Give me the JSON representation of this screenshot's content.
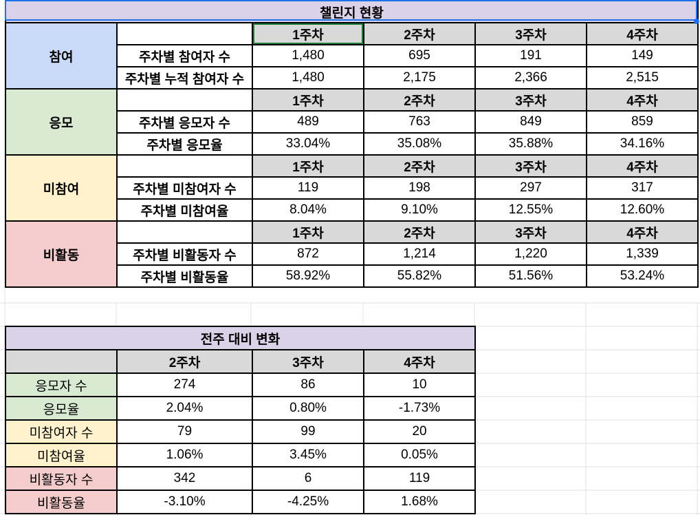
{
  "challenge": {
    "title": "챌린지 현황",
    "week_headers": [
      "1주차",
      "2주차",
      "3주차",
      "4주차"
    ],
    "sections": [
      {
        "category": "참여",
        "color": "#c9daf8",
        "rows": [
          {
            "label": "주차별 참여자 수",
            "values": [
              "1,480",
              "695",
              "191",
              "149"
            ]
          },
          {
            "label": "주차별 누적 참여자 수",
            "values": [
              "1,480",
              "2,175",
              "2,366",
              "2,515"
            ]
          }
        ]
      },
      {
        "category": "응모",
        "color": "#d9ead3",
        "rows": [
          {
            "label": "주차별 응모자 수",
            "values": [
              "489",
              "763",
              "849",
              "859"
            ]
          },
          {
            "label": "주차별 응모율",
            "values": [
              "33.04%",
              "35.08%",
              "35.88%",
              "34.16%"
            ]
          }
        ]
      },
      {
        "category": "미참여",
        "color": "#fff2cc",
        "rows": [
          {
            "label": "주차별 미참여자 수",
            "values": [
              "119",
              "198",
              "297",
              "317"
            ]
          },
          {
            "label": "주차별 미참여율",
            "values": [
              "8.04%",
              "9.10%",
              "12.55%",
              "12.60%"
            ]
          }
        ]
      },
      {
        "category": "비활동",
        "color": "#f4cccc",
        "rows": [
          {
            "label": "주차별 비활동자 수",
            "values": [
              "872",
              "1,214",
              "1,220",
              "1,339"
            ]
          },
          {
            "label": "주차별 비활동율",
            "values": [
              "58.92%",
              "55.82%",
              "51.56%",
              "53.24%"
            ]
          }
        ]
      }
    ]
  },
  "change": {
    "title": "전주 대비 변화",
    "week_headers": [
      "2주차",
      "3주차",
      "4주차"
    ],
    "rows": [
      {
        "label": "응모자 수",
        "color": "#d9ead3",
        "values": [
          "274",
          "86",
          "10"
        ]
      },
      {
        "label": "응모율",
        "color": "#d9ead3",
        "values": [
          "2.04%",
          "0.80%",
          "-1.73%"
        ]
      },
      {
        "label": "미참여자 수",
        "color": "#fff2cc",
        "values": [
          "79",
          "99",
          "20"
        ]
      },
      {
        "label": "미참여율",
        "color": "#fff2cc",
        "values": [
          "1.06%",
          "3.45%",
          "0.05%"
        ]
      },
      {
        "label": "비활동자 수",
        "color": "#f4cccc",
        "values": [
          "342",
          "6",
          "119"
        ]
      },
      {
        "label": "비활동율",
        "color": "#f4cccc",
        "values": [
          "-3.10%",
          "-4.25%",
          "1.68%"
        ]
      }
    ]
  }
}
